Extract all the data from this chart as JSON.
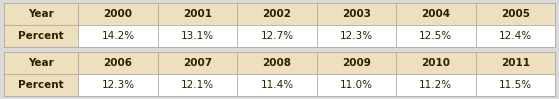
{
  "table1_headers": [
    "Year",
    "2000",
    "2001",
    "2002",
    "2003",
    "2004",
    "2005"
  ],
  "table1_row": [
    "Percent",
    "14.2%",
    "13.1%",
    "12.7%",
    "12.3%",
    "12.5%",
    "12.4%"
  ],
  "table2_headers": [
    "Year",
    "2006",
    "2007",
    "2008",
    "2009",
    "2010",
    "2011"
  ],
  "table2_row": [
    "Percent",
    "12.3%",
    "12.1%",
    "11.4%",
    "11.0%",
    "11.2%",
    "11.5%"
  ],
  "header_bg": "#EEE0BC",
  "cell_bg": "#FFFFFF",
  "border_color": "#AAAAAA",
  "header_text_color": "#2B2000",
  "cell_text_color": "#2B2000",
  "outer_bg": "#DADADA",
  "font_size": 7.5,
  "fig_width": 5.59,
  "fig_height": 0.99,
  "dpi": 100
}
